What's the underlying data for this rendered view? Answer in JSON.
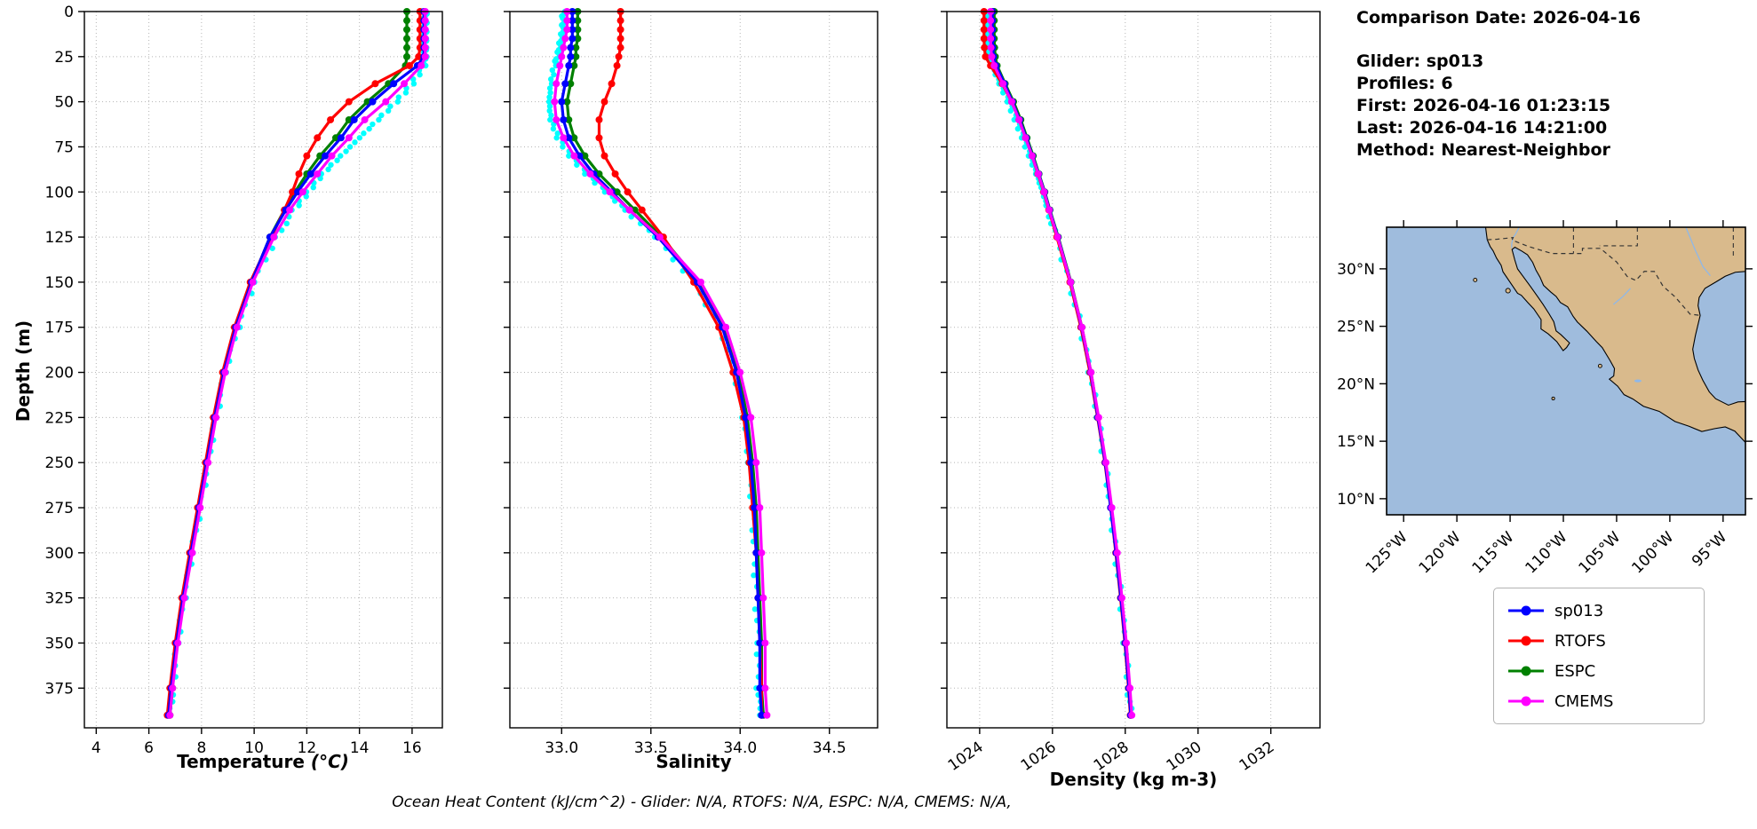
{
  "info_panel": {
    "comparison_date": "Comparison Date: 2026-04-16",
    "lines": [
      "Glider: sp013",
      "Profiles: 6",
      "First: 2026-04-16 01:23:15",
      "Last: 2026-04-16 14:21:00",
      "Method: Nearest-Neighbor"
    ]
  },
  "caption": "Ocean Heat Content (kJ/cm^2) - Glider: N/A,  RTOFS: N/A,  ESPC: N/A,  CMEMS: N/A,",
  "legend": {
    "items": [
      {
        "label": "sp013",
        "color": "#0000ff"
      },
      {
        "label": "RTOFS",
        "color": "#ff0000"
      },
      {
        "label": "ESPC",
        "color": "#008000"
      },
      {
        "label": "CMEMS",
        "color": "#ff00ff"
      }
    ]
  },
  "colors": {
    "glider_scatter": "#00ffff",
    "grid": "#b5b5b5",
    "axis": "#000000"
  },
  "chart_data": [
    {
      "type": "line",
      "title": "",
      "xlabel": "Temperature",
      "xlabel_unit": "(°C)",
      "ylabel": "Depth (m)",
      "xlim": [
        3.55,
        17.15
      ],
      "xticks": [
        4,
        6,
        8,
        10,
        12,
        14,
        16
      ],
      "xtick_labels": [
        "4",
        "6",
        "8",
        "10",
        "12",
        "14",
        "16"
      ],
      "ylim": [
        0,
        397
      ],
      "yticks": [
        0,
        25,
        50,
        75,
        100,
        125,
        150,
        175,
        200,
        225,
        250,
        275,
        300,
        325,
        350,
        375
      ],
      "ytick_labels": [
        "0",
        "25",
        "50",
        "75",
        "100",
        "125",
        "150",
        "175",
        "200",
        "225",
        "250",
        "275",
        "300",
        "325",
        "350",
        "375"
      ],
      "grid": true,
      "depths": [
        0,
        5,
        10,
        15,
        20,
        25,
        30,
        40,
        50,
        60,
        70,
        80,
        90,
        100,
        110,
        125,
        150,
        175,
        200,
        225,
        250,
        275,
        300,
        325,
        350,
        375,
        390
      ],
      "series": [
        {
          "name": "glider-observations",
          "color": "#00ffff",
          "style": "scatter",
          "values": [
            16.5,
            16.5,
            16.5,
            16.5,
            16.5,
            16.5,
            16.45,
            16.0,
            15.4,
            14.7,
            14.0,
            13.3,
            12.6,
            12.05,
            11.5,
            10.85,
            10.0,
            9.4,
            8.9,
            8.55,
            8.25,
            7.95,
            7.65,
            7.35,
            7.1,
            6.9,
            6.8
          ]
        },
        {
          "name": "ESPC",
          "color": "#008000",
          "style": "line-marker",
          "values": [
            15.8,
            15.8,
            15.8,
            15.8,
            15.8,
            15.8,
            15.75,
            15.1,
            14.3,
            13.6,
            13.1,
            12.5,
            12.0,
            11.55,
            11.15,
            10.6,
            9.9,
            9.3,
            8.85,
            8.5,
            8.2,
            7.9,
            7.6,
            7.3,
            7.05,
            6.9,
            6.8
          ]
        },
        {
          "name": "RTOFS",
          "color": "#ff0000",
          "style": "line-marker",
          "values": [
            16.3,
            16.3,
            16.3,
            16.3,
            16.3,
            16.25,
            15.9,
            14.6,
            13.6,
            12.9,
            12.4,
            12.0,
            11.7,
            11.45,
            11.15,
            10.65,
            9.85,
            9.25,
            8.8,
            8.45,
            8.15,
            7.85,
            7.55,
            7.25,
            7.0,
            6.8,
            6.7
          ]
        },
        {
          "name": "sp013",
          "color": "#0000ff",
          "style": "line-marker",
          "values": [
            16.45,
            16.45,
            16.45,
            16.45,
            16.45,
            16.45,
            16.2,
            15.3,
            14.5,
            13.8,
            13.3,
            12.7,
            12.15,
            11.65,
            11.2,
            10.6,
            9.9,
            9.3,
            8.85,
            8.5,
            8.2,
            7.9,
            7.6,
            7.3,
            7.05,
            6.85,
            6.75
          ]
        },
        {
          "name": "CMEMS",
          "color": "#ff00ff",
          "style": "line-marker",
          "values": [
            16.5,
            16.5,
            16.5,
            16.5,
            16.5,
            16.5,
            16.35,
            15.7,
            15.0,
            14.2,
            13.6,
            12.95,
            12.4,
            11.85,
            11.35,
            10.75,
            9.95,
            9.35,
            8.9,
            8.55,
            8.25,
            7.95,
            7.65,
            7.35,
            7.1,
            6.9,
            6.8
          ]
        }
      ]
    },
    {
      "type": "line",
      "title": "",
      "xlabel": "Salinity",
      "xlabel_unit": "",
      "ylabel": "Depth (m)",
      "xlim": [
        32.71,
        34.77
      ],
      "xticks": [
        33.0,
        33.5,
        34.0,
        34.5
      ],
      "xtick_labels": [
        "33.0",
        "33.5",
        "34.0",
        "34.5"
      ],
      "ylim": [
        0,
        397
      ],
      "yticks": [
        0,
        25,
        50,
        75,
        100,
        125,
        150,
        175,
        200,
        225,
        250,
        275,
        300,
        325,
        350,
        375
      ],
      "ytick_labels": [],
      "grid": true,
      "depths": [
        0,
        5,
        10,
        15,
        20,
        25,
        30,
        40,
        50,
        60,
        70,
        80,
        90,
        100,
        110,
        125,
        150,
        175,
        200,
        225,
        250,
        275,
        300,
        325,
        350,
        375,
        390
      ],
      "series": [
        {
          "name": "glider-observations",
          "color": "#00ffff",
          "style": "scatter",
          "values": [
            33.01,
            33.01,
            33.01,
            33.0,
            32.99,
            32.98,
            32.96,
            32.94,
            32.93,
            32.94,
            32.98,
            33.05,
            33.14,
            33.25,
            33.36,
            33.52,
            33.74,
            33.89,
            33.97,
            34.02,
            34.05,
            34.07,
            34.08,
            34.09,
            34.1,
            34.1,
            34.11
          ]
        },
        {
          "name": "ESPC",
          "color": "#008000",
          "style": "line-marker",
          "values": [
            33.09,
            33.09,
            33.09,
            33.09,
            33.08,
            33.08,
            33.07,
            33.05,
            33.03,
            33.04,
            33.07,
            33.13,
            33.21,
            33.31,
            33.41,
            33.56,
            33.77,
            33.91,
            33.99,
            34.04,
            34.07,
            34.09,
            34.1,
            34.11,
            34.12,
            34.12,
            34.13
          ]
        },
        {
          "name": "RTOFS",
          "color": "#ff0000",
          "style": "line-marker",
          "values": [
            33.33,
            33.33,
            33.33,
            33.33,
            33.33,
            33.32,
            33.31,
            33.28,
            33.24,
            33.21,
            33.21,
            33.24,
            33.3,
            33.37,
            33.45,
            33.57,
            33.74,
            33.88,
            33.96,
            34.02,
            34.05,
            34.07,
            34.09,
            34.1,
            34.11,
            34.12,
            34.12
          ]
        },
        {
          "name": "sp013",
          "color": "#0000ff",
          "style": "line-marker",
          "values": [
            33.06,
            33.06,
            33.06,
            33.06,
            33.05,
            33.05,
            33.04,
            33.02,
            33.0,
            33.01,
            33.04,
            33.1,
            33.18,
            33.28,
            33.38,
            33.54,
            33.76,
            33.9,
            33.98,
            34.03,
            34.06,
            34.08,
            34.09,
            34.1,
            34.11,
            34.11,
            34.12
          ]
        },
        {
          "name": "CMEMS",
          "color": "#ff00ff",
          "style": "line-marker",
          "values": [
            33.03,
            33.03,
            33.03,
            33.02,
            33.01,
            33.0,
            32.99,
            32.97,
            32.96,
            32.97,
            33.01,
            33.07,
            33.16,
            33.27,
            33.38,
            33.55,
            33.78,
            33.92,
            34.0,
            34.06,
            34.09,
            34.11,
            34.12,
            34.13,
            34.14,
            34.14,
            34.15
          ]
        }
      ]
    },
    {
      "type": "line",
      "title": "",
      "xlabel": "Density (kg m-3)",
      "xlabel_unit": "",
      "ylabel": "Depth (m)",
      "xlim": [
        1023.1,
        1033.35
      ],
      "xticks": [
        1024,
        1026,
        1028,
        1030,
        1032
      ],
      "xtick_labels": [
        "1024",
        "1026",
        "1028",
        "1030",
        "1032"
      ],
      "ylim": [
        0,
        397
      ],
      "yticks": [
        0,
        25,
        50,
        75,
        100,
        125,
        150,
        175,
        200,
        225,
        250,
        275,
        300,
        325,
        350,
        375
      ],
      "ytick_labels": [],
      "grid": true,
      "depths": [
        0,
        5,
        10,
        15,
        20,
        25,
        30,
        40,
        50,
        60,
        70,
        80,
        90,
        100,
        110,
        125,
        150,
        175,
        200,
        225,
        250,
        275,
        300,
        325,
        350,
        375,
        390
      ],
      "series": [
        {
          "name": "glider-observations",
          "color": "#00ffff",
          "style": "scatter",
          "values": [
            1024.25,
            1024.25,
            1024.25,
            1024.25,
            1024.26,
            1024.28,
            1024.34,
            1024.56,
            1024.8,
            1025.0,
            1025.2,
            1025.38,
            1025.56,
            1025.73,
            1025.88,
            1026.11,
            1026.47,
            1026.78,
            1027.03,
            1027.24,
            1027.44,
            1027.6,
            1027.74,
            1027.87,
            1027.99,
            1028.09,
            1028.14
          ]
        },
        {
          "name": "ESPC",
          "color": "#008000",
          "style": "line-marker",
          "values": [
            1024.4,
            1024.4,
            1024.4,
            1024.4,
            1024.41,
            1024.43,
            1024.48,
            1024.7,
            1024.93,
            1025.13,
            1025.3,
            1025.47,
            1025.63,
            1025.79,
            1025.93,
            1026.16,
            1026.51,
            1026.81,
            1027.06,
            1027.26,
            1027.46,
            1027.61,
            1027.76,
            1027.89,
            1028.01,
            1028.11,
            1028.16
          ]
        },
        {
          "name": "RTOFS",
          "color": "#ff0000",
          "style": "line-marker",
          "values": [
            1024.12,
            1024.12,
            1024.12,
            1024.12,
            1024.13,
            1024.16,
            1024.3,
            1024.62,
            1024.88,
            1025.08,
            1025.26,
            1025.44,
            1025.6,
            1025.76,
            1025.9,
            1026.12,
            1026.48,
            1026.78,
            1027.03,
            1027.24,
            1027.44,
            1027.6,
            1027.74,
            1027.87,
            1027.99,
            1028.09,
            1028.14
          ]
        },
        {
          "name": "sp013",
          "color": "#0000ff",
          "style": "line-marker",
          "values": [
            1024.35,
            1024.35,
            1024.35,
            1024.35,
            1024.36,
            1024.38,
            1024.45,
            1024.68,
            1024.9,
            1025.1,
            1025.28,
            1025.45,
            1025.62,
            1025.78,
            1025.92,
            1026.15,
            1026.5,
            1026.8,
            1027.05,
            1027.25,
            1027.45,
            1027.6,
            1027.75,
            1027.88,
            1028.0,
            1028.1,
            1028.15
          ]
        },
        {
          "name": "CMEMS",
          "color": "#ff00ff",
          "style": "line-marker",
          "values": [
            1024.3,
            1024.3,
            1024.3,
            1024.3,
            1024.31,
            1024.33,
            1024.4,
            1024.64,
            1024.88,
            1025.08,
            1025.26,
            1025.44,
            1025.61,
            1025.77,
            1025.91,
            1026.14,
            1026.5,
            1026.81,
            1027.06,
            1027.27,
            1027.47,
            1027.63,
            1027.78,
            1027.91,
            1028.03,
            1028.13,
            1028.18
          ]
        }
      ]
    }
  ],
  "map": {
    "extent": {
      "lon": [
        -126.6,
        -92.9
      ],
      "lat": [
        8.6,
        33.62
      ]
    },
    "lat_ticks": [
      30,
      25,
      20,
      15,
      10
    ],
    "lat_tick_labels": [
      "30°N",
      "25°N",
      "20°N",
      "15°N",
      "10°N"
    ],
    "lon_ticks": [
      -125,
      -120,
      -115,
      -110,
      -105,
      -100,
      -95
    ],
    "lon_tick_labels": [
      "125°W",
      "120°W",
      "115°W",
      "110°W",
      "105°W",
      "100°W",
      "95°W"
    ],
    "colors": {
      "ocean": "#9fbcdd",
      "land": "#d9ba8c",
      "coast": "#000000",
      "border": "#333333",
      "river": "#8fb8e8"
    }
  }
}
